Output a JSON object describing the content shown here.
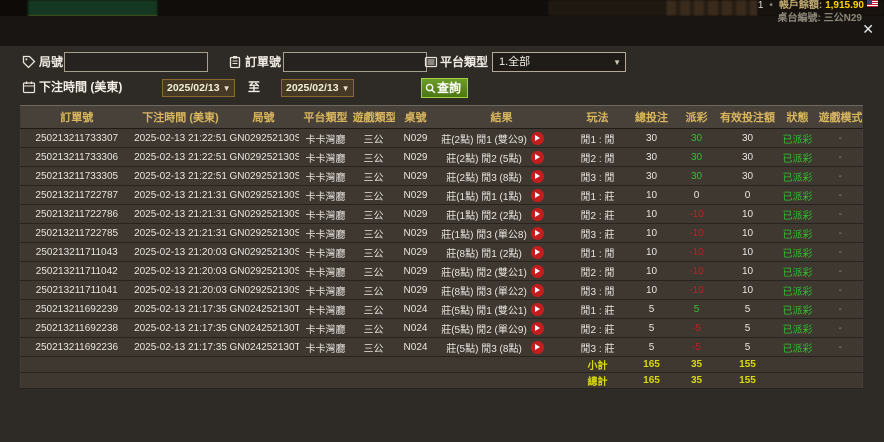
{
  "colors": {
    "modal_bg": "#2e2a25",
    "header_gold": "#d9b65d",
    "win_green": "#2ec22e",
    "lose_red": "#b92222",
    "total_yellow": "#d9d90e",
    "button_green": "#4c7716",
    "balance_yellow": "#ffd400"
  },
  "background": {
    "seat_number": "1",
    "balance_label": "帳戶餘額:",
    "balance_value": "1,915.90",
    "table_label": "桌台編號:",
    "table_value": "三公N29"
  },
  "dialog": {
    "close_glyph": "✕",
    "filters": {
      "round_label": "局號",
      "round_value": "",
      "order_label": "訂單號",
      "order_value": "",
      "platform_label": "平台類型",
      "platform_selected": "1.全部",
      "time_label": "下注時間 (美東)",
      "date_from": "2025/02/13",
      "to_label": "至",
      "date_to": "2025/02/13",
      "search_label": "查詢"
    },
    "table": {
      "headers": [
        "訂單號",
        "下注時間 (美東)",
        "局號",
        "平台類型",
        "遊戲類型",
        "桌號",
        "結果",
        "玩法",
        "總投注",
        "派彩",
        "有效投注額",
        "狀態",
        "遊戲模式"
      ],
      "rows": [
        {
          "order": "250213211733307",
          "time": "2025-02-13 21:22:51",
          "round": "GN029252130SI",
          "platform": "卡卡灣廳",
          "game": "三公",
          "table_no": "N029",
          "result": "莊(2點) 閒1 (雙公9)",
          "play": "閒1 : 閒",
          "bet": "30",
          "payout": "30",
          "payout_tone": "win",
          "valid": "30",
          "status": "已派彩",
          "mode": "-"
        },
        {
          "order": "250213211733306",
          "time": "2025-02-13 21:22:51",
          "round": "GN029252130SI",
          "platform": "卡卡灣廳",
          "game": "三公",
          "table_no": "N029",
          "result": "莊(2點) 閒2 (5點)",
          "play": "閒2 : 閒",
          "bet": "30",
          "payout": "30",
          "payout_tone": "win",
          "valid": "30",
          "status": "已派彩",
          "mode": "-"
        },
        {
          "order": "250213211733305",
          "time": "2025-02-13 21:22:51",
          "round": "GN029252130SI",
          "platform": "卡卡灣廳",
          "game": "三公",
          "table_no": "N029",
          "result": "莊(2點) 閒3 (8點)",
          "play": "閒3 : 閒",
          "bet": "30",
          "payout": "30",
          "payout_tone": "win",
          "valid": "30",
          "status": "已派彩",
          "mode": "-"
        },
        {
          "order": "250213211722787",
          "time": "2025-02-13 21:21:31",
          "round": "GN029252130SH",
          "platform": "卡卡灣廳",
          "game": "三公",
          "table_no": "N029",
          "result": "莊(1點) 閒1 (1點)",
          "play": "閒1 : 莊",
          "bet": "10",
          "payout": "0",
          "payout_tone": "zero",
          "valid": "0",
          "status": "已派彩",
          "mode": "-"
        },
        {
          "order": "250213211722786",
          "time": "2025-02-13 21:21:31",
          "round": "GN029252130SH",
          "platform": "卡卡灣廳",
          "game": "三公",
          "table_no": "N029",
          "result": "莊(1點) 閒2 (2點)",
          "play": "閒2 : 莊",
          "bet": "10",
          "payout": "-10",
          "payout_tone": "lose",
          "valid": "10",
          "status": "已派彩",
          "mode": "-"
        },
        {
          "order": "250213211722785",
          "time": "2025-02-13 21:21:31",
          "round": "GN029252130SH",
          "platform": "卡卡灣廳",
          "game": "三公",
          "table_no": "N029",
          "result": "莊(1點) 閒3 (單公8)",
          "play": "閒3 : 莊",
          "bet": "10",
          "payout": "-10",
          "payout_tone": "lose",
          "valid": "10",
          "status": "已派彩",
          "mode": "-"
        },
        {
          "order": "250213211711043",
          "time": "2025-02-13 21:20:03",
          "round": "GN029252130SG",
          "platform": "卡卡灣廳",
          "game": "三公",
          "table_no": "N029",
          "result": "莊(8點) 閒1 (2點)",
          "play": "閒1 : 閒",
          "bet": "10",
          "payout": "-10",
          "payout_tone": "lose",
          "valid": "10",
          "status": "已派彩",
          "mode": "-"
        },
        {
          "order": "250213211711042",
          "time": "2025-02-13 21:20:03",
          "round": "GN029252130SG",
          "platform": "卡卡灣廳",
          "game": "三公",
          "table_no": "N029",
          "result": "莊(8點) 閒2 (雙公1)",
          "play": "閒2 : 閒",
          "bet": "10",
          "payout": "-10",
          "payout_tone": "lose",
          "valid": "10",
          "status": "已派彩",
          "mode": "-"
        },
        {
          "order": "250213211711041",
          "time": "2025-02-13 21:20:03",
          "round": "GN029252130SG",
          "platform": "卡卡灣廳",
          "game": "三公",
          "table_no": "N029",
          "result": "莊(8點) 閒3 (單公2)",
          "play": "閒3 : 閒",
          "bet": "10",
          "payout": "-10",
          "payout_tone": "lose",
          "valid": "10",
          "status": "已派彩",
          "mode": "-"
        },
        {
          "order": "250213211692239",
          "time": "2025-02-13 21:17:35",
          "round": "GN024252130TO",
          "platform": "卡卡灣廳",
          "game": "三公",
          "table_no": "N024",
          "result": "莊(5點) 閒1 (雙公1)",
          "play": "閒1 : 莊",
          "bet": "5",
          "payout": "5",
          "payout_tone": "win",
          "valid": "5",
          "status": "已派彩",
          "mode": "-"
        },
        {
          "order": "250213211692238",
          "time": "2025-02-13 21:17:35",
          "round": "GN024252130TO",
          "platform": "卡卡灣廳",
          "game": "三公",
          "table_no": "N024",
          "result": "莊(5點) 閒2 (單公9)",
          "play": "閒2 : 莊",
          "bet": "5",
          "payout": "-5",
          "payout_tone": "lose",
          "valid": "5",
          "status": "已派彩",
          "mode": "-"
        },
        {
          "order": "250213211692236",
          "time": "2025-02-13 21:17:35",
          "round": "GN024252130TO",
          "platform": "卡卡灣廳",
          "game": "三公",
          "table_no": "N024",
          "result": "莊(5點) 閒3 (8點)",
          "play": "閒3 : 莊",
          "bet": "5",
          "payout": "-5",
          "payout_tone": "lose",
          "valid": "5",
          "status": "已派彩",
          "mode": "-"
        }
      ],
      "subtotal": {
        "label": "小計",
        "bet": "165",
        "payout": "35",
        "valid": "155"
      },
      "total": {
        "label": "總計",
        "bet": "165",
        "payout": "35",
        "valid": "155"
      }
    }
  }
}
